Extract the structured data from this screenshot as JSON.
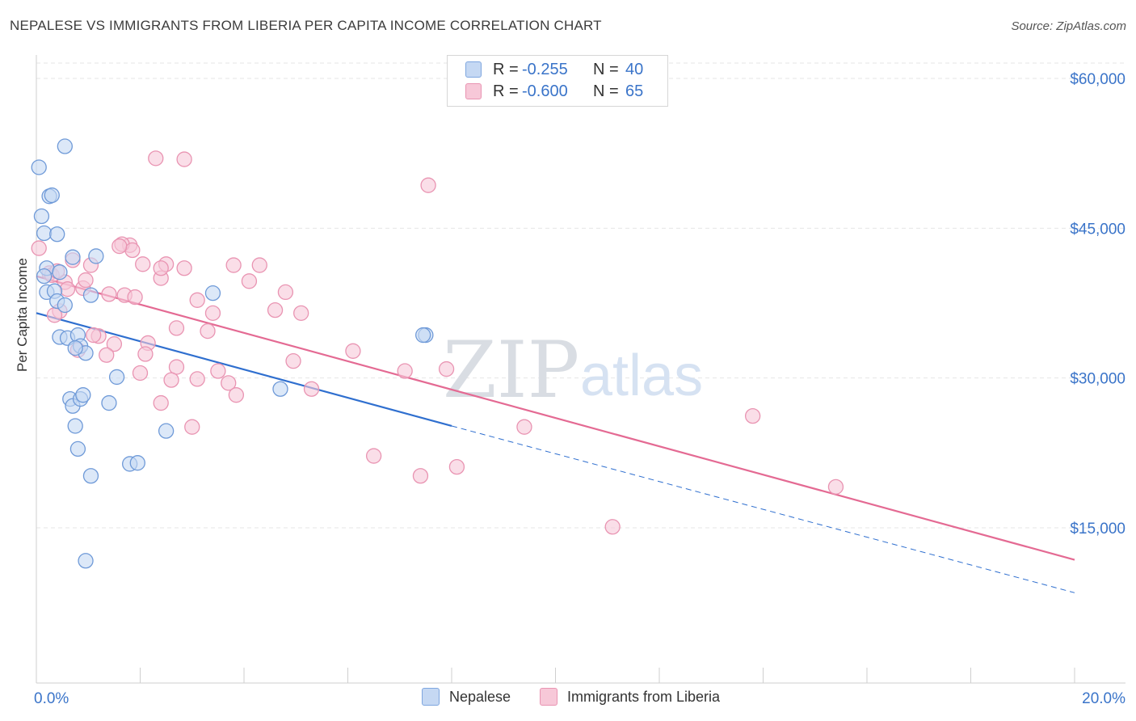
{
  "title": "NEPALESE VS IMMIGRANTS FROM LIBERIA PER CAPITA INCOME CORRELATION CHART",
  "source": "Source: ZipAtlas.com",
  "watermark": {
    "zip": "ZIP",
    "atlas": "atlas"
  },
  "colors": {
    "blue": "#3a74c9",
    "blue_fill": "#c5d8f3",
    "blue_line": "#2f6fcf",
    "pink": "#e46a93",
    "pink_fill": "#f7c8d8",
    "grid": "#e6e6e6",
    "tick_label": "#3a74c9"
  },
  "legend_top": {
    "rows": [
      {
        "r_label": "R =",
        "r_value": "-0.255",
        "n_label": "N =",
        "n_value": "40"
      },
      {
        "r_label": "R =",
        "r_value": "-0.600",
        "n_label": "N =",
        "n_value": "65"
      }
    ]
  },
  "legend_bottom": {
    "series1": "Nepalese",
    "series2": "Immigrants from Liberia"
  },
  "chart_data": {
    "type": "scatter",
    "title": "NEPALESE VS IMMIGRANTS FROM LIBERIA PER CAPITA INCOME CORRELATION CHART",
    "xlabel": "",
    "ylabel": "Per Capita Income",
    "xlim": [
      0,
      20
    ],
    "ylim": [
      0,
      62000
    ],
    "x_tick_labels": [
      {
        "value": 0,
        "label": "0.0%"
      },
      {
        "value": 20,
        "label": "20.0%"
      }
    ],
    "y_ticks": [
      {
        "value": 15000,
        "label": "$15,000"
      },
      {
        "value": 30000,
        "label": "$30,000"
      },
      {
        "value": 45000,
        "label": "$45,000"
      },
      {
        "value": 60000,
        "label": "$60,000"
      }
    ],
    "series": [
      {
        "name": "Nepalese",
        "R": -0.255,
        "N": 40,
        "trend": {
          "x0": 0,
          "y0": 36500,
          "x1": 8,
          "y1": 25200,
          "dashed_to_x": 20,
          "dashed_to_y": 8500
        },
        "points": [
          [
            0.55,
            53200
          ],
          [
            0.05,
            51100
          ],
          [
            0.25,
            48200
          ],
          [
            0.3,
            48300
          ],
          [
            0.1,
            46200
          ],
          [
            0.15,
            44500
          ],
          [
            0.4,
            44400
          ],
          [
            0.2,
            41000
          ],
          [
            0.45,
            40600
          ],
          [
            1.15,
            42200
          ],
          [
            1.05,
            38300
          ],
          [
            0.7,
            42100
          ],
          [
            0.2,
            38600
          ],
          [
            0.35,
            38700
          ],
          [
            0.4,
            37700
          ],
          [
            0.55,
            37300
          ],
          [
            0.45,
            34100
          ],
          [
            0.6,
            34000
          ],
          [
            0.8,
            34300
          ],
          [
            0.85,
            33200
          ],
          [
            0.95,
            32500
          ],
          [
            0.75,
            33000
          ],
          [
            1.55,
            30100
          ],
          [
            0.65,
            27900
          ],
          [
            0.7,
            27200
          ],
          [
            0.85,
            27900
          ],
          [
            0.9,
            28300
          ],
          [
            1.4,
            27500
          ],
          [
            0.75,
            25200
          ],
          [
            2.5,
            24700
          ],
          [
            0.8,
            22900
          ],
          [
            1.8,
            21400
          ],
          [
            1.95,
            21500
          ],
          [
            1.05,
            20200
          ],
          [
            0.95,
            11700
          ],
          [
            3.4,
            38500
          ],
          [
            4.7,
            28900
          ],
          [
            7.5,
            34300
          ],
          [
            7.45,
            34300
          ],
          [
            0.15,
            40200
          ]
        ]
      },
      {
        "name": "Immigrants from Liberia",
        "R": -0.6,
        "N": 65,
        "trend": {
          "x0": 0,
          "y0": 40200,
          "x1": 20,
          "y1": 11800
        },
        "points": [
          [
            0.05,
            43000
          ],
          [
            0.25,
            40500
          ],
          [
            0.3,
            40300
          ],
          [
            0.7,
            41800
          ],
          [
            0.55,
            39600
          ],
          [
            0.6,
            38900
          ],
          [
            0.45,
            36700
          ],
          [
            0.35,
            36300
          ],
          [
            0.9,
            39000
          ],
          [
            0.95,
            39800
          ],
          [
            1.05,
            41300
          ],
          [
            1.8,
            43300
          ],
          [
            1.65,
            43400
          ],
          [
            1.85,
            42800
          ],
          [
            2.05,
            41400
          ],
          [
            2.4,
            40000
          ],
          [
            2.5,
            41400
          ],
          [
            2.85,
            41000
          ],
          [
            3.8,
            41300
          ],
          [
            4.3,
            41300
          ],
          [
            4.1,
            39700
          ],
          [
            1.4,
            38400
          ],
          [
            1.7,
            38300
          ],
          [
            1.9,
            38100
          ],
          [
            3.1,
            37800
          ],
          [
            3.4,
            36500
          ],
          [
            4.6,
            36800
          ],
          [
            4.8,
            38600
          ],
          [
            5.1,
            36500
          ],
          [
            2.7,
            35000
          ],
          [
            3.3,
            34700
          ],
          [
            1.2,
            34200
          ],
          [
            1.1,
            34300
          ],
          [
            1.5,
            33400
          ],
          [
            2.15,
            33500
          ],
          [
            0.8,
            32800
          ],
          [
            2.1,
            32400
          ],
          [
            1.35,
            32300
          ],
          [
            4.95,
            31700
          ],
          [
            2.7,
            31100
          ],
          [
            3.5,
            30700
          ],
          [
            2.0,
            30500
          ],
          [
            3.1,
            29900
          ],
          [
            2.6,
            29800
          ],
          [
            3.7,
            29500
          ],
          [
            3.85,
            28300
          ],
          [
            5.3,
            28900
          ],
          [
            6.1,
            32700
          ],
          [
            7.1,
            30700
          ],
          [
            7.9,
            30900
          ],
          [
            2.4,
            27500
          ],
          [
            3.0,
            25100
          ],
          [
            9.4,
            25100
          ],
          [
            13.8,
            26200
          ],
          [
            6.5,
            22200
          ],
          [
            7.4,
            20200
          ],
          [
            8.1,
            21100
          ],
          [
            15.4,
            19100
          ],
          [
            11.1,
            15100
          ],
          [
            2.3,
            52000
          ],
          [
            2.85,
            51900
          ],
          [
            7.55,
            49300
          ],
          [
            0.4,
            40700
          ],
          [
            2.4,
            41000
          ],
          [
            1.6,
            43200
          ]
        ]
      }
    ]
  }
}
